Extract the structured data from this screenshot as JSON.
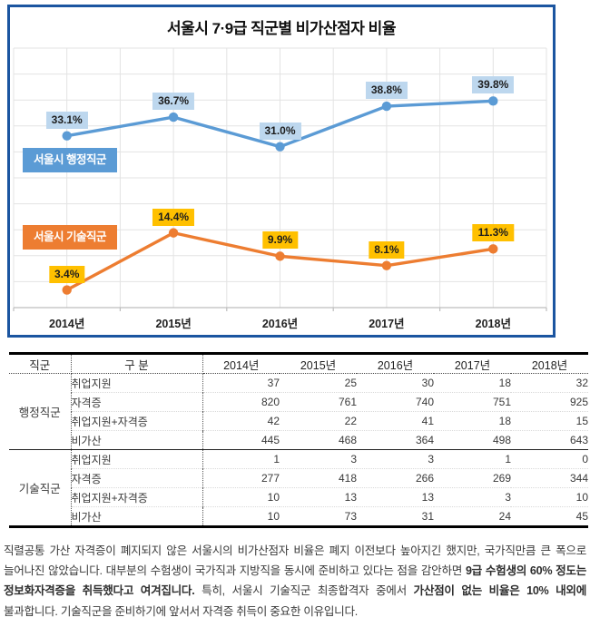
{
  "chart_data": {
    "type": "line",
    "title": "서울시 7·9급 직군별 비가산점자 비율",
    "categories": [
      "2014년",
      "2015년",
      "2016년",
      "2017년",
      "2018년"
    ],
    "series": [
      {
        "name": "서울시 행정직군",
        "values": [
          33.1,
          36.7,
          31.0,
          38.8,
          39.8
        ],
        "labels": [
          "33.1%",
          "36.7%",
          "31.0%",
          "38.8%",
          "39.8%"
        ],
        "color": "#5B9BD5",
        "label_bg": "#BDD7EE"
      },
      {
        "name": "서울시 기술직군",
        "values": [
          3.4,
          14.4,
          9.9,
          8.1,
          11.3
        ],
        "labels": [
          "3.4%",
          "14.4%",
          "9.9%",
          "8.1%",
          "11.3%"
        ],
        "color": "#ED7D31",
        "label_bg": "#FFC000"
      }
    ],
    "ylim": [
      0,
      50
    ],
    "grid": true,
    "legend_position": "inline-badges",
    "border_color": "#1b55a0",
    "gridline_color": "#e3e3e3"
  },
  "table": {
    "columns": [
      "직군",
      "구  분",
      "2014년",
      "2015년",
      "2016년",
      "2017년",
      "2018년"
    ],
    "groups": [
      {
        "name": "행정직군",
        "rows": [
          {
            "label": "취업지원",
            "values": [
              "37",
              "25",
              "30",
              "18",
              "32"
            ]
          },
          {
            "label": "자격증",
            "values": [
              "820",
              "761",
              "740",
              "751",
              "925"
            ]
          },
          {
            "label": "취업지원+자격증",
            "values": [
              "42",
              "22",
              "41",
              "18",
              "15"
            ]
          },
          {
            "label": "비가산",
            "values": [
              "445",
              "468",
              "364",
              "498",
              "643"
            ]
          }
        ]
      },
      {
        "name": "기술직군",
        "rows": [
          {
            "label": "취업지원",
            "values": [
              "1",
              "3",
              "3",
              "1",
              "0"
            ]
          },
          {
            "label": "자격증",
            "values": [
              "277",
              "418",
              "266",
              "269",
              "344"
            ]
          },
          {
            "label": "취업지원+자격증",
            "values": [
              "10",
              "13",
              "13",
              "3",
              "10"
            ]
          },
          {
            "label": "비가산",
            "values": [
              "10",
              "73",
              "31",
              "24",
              "45"
            ]
          }
        ]
      }
    ]
  },
  "commentary": {
    "segments": [
      {
        "text": "직렬공통 가산 자격증이 폐지되지 않은 서울시의 비가산점자 비율은 폐지 이전보다 높아지긴 했지만, 국가직만큼 큰 폭으로 늘어나진 않았습니다. 대부분의 수험생이 국가직과 지방직을 동시에 준비하고 있다는 점을 감안하면 ",
        "bold": false
      },
      {
        "text": "9급 수험생의 60% 정도는 정보화자격증을 취득했다고 여겨집니다.",
        "bold": true
      },
      {
        "text": " 특히, 서울시 기술직군 최종합격자 중에서 ",
        "bold": false
      },
      {
        "text": "가산점이 없는 비율은 10% 내외에",
        "bold": true
      },
      {
        "text": " 불과합니다. 기술직군을 준비하기에 앞서서 자격증 취득이 중요한 이유입니다.",
        "bold": false
      }
    ]
  }
}
